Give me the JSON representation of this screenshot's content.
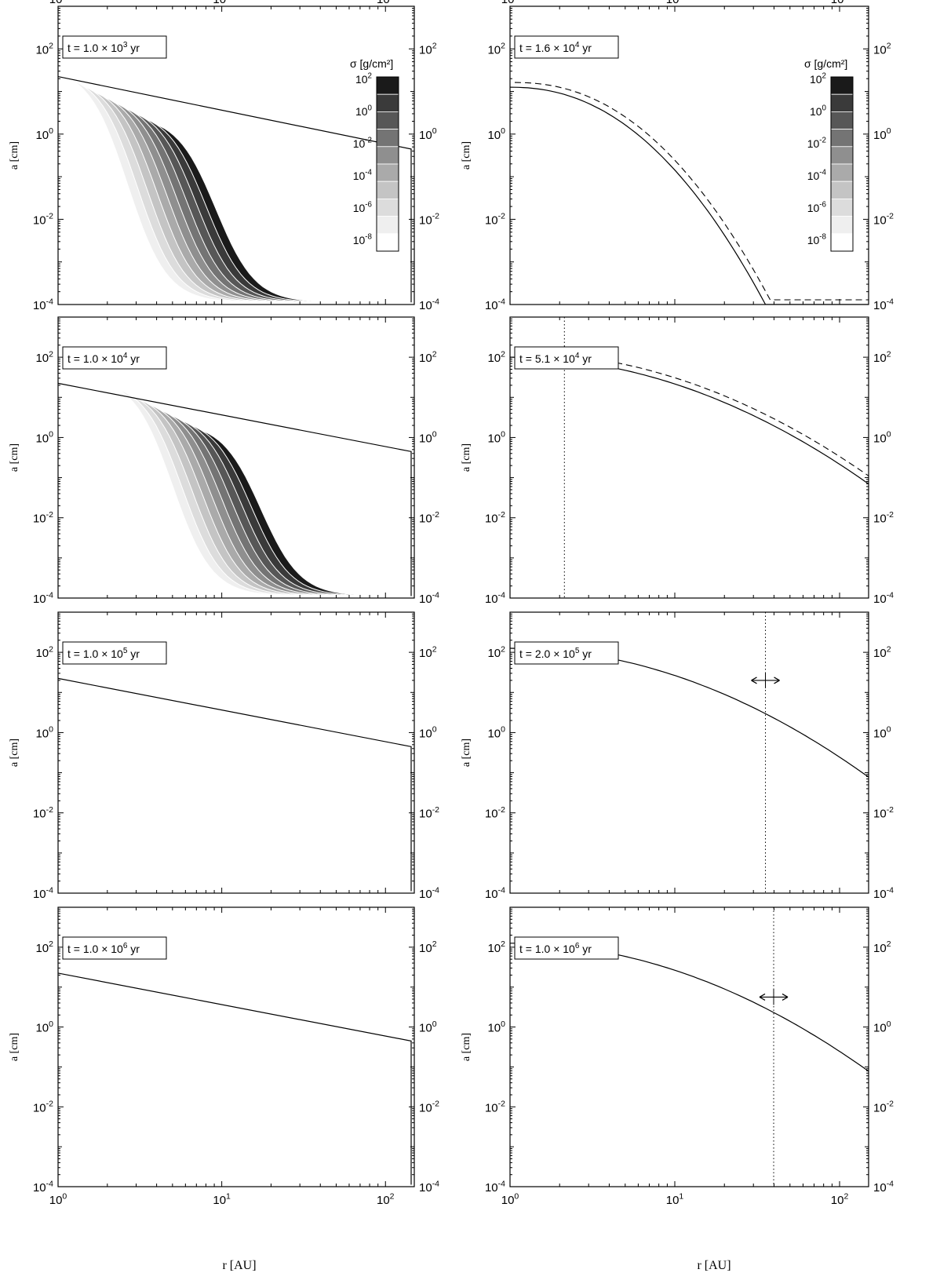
{
  "chart_data": {
    "type": "contour",
    "layout": "4 rows x 2 columns",
    "xlabel": "r [AU]",
    "ylabel": "a [cm]",
    "x_scale": "log",
    "y_scale": "log",
    "xlim": [
      1,
      150
    ],
    "ylim": [
      0.0001,
      1000
    ],
    "x_ticks": [
      1,
      10,
      100
    ],
    "x_tick_labels": [
      {
        "base": "10",
        "exp": "0"
      },
      {
        "base": "10",
        "exp": "1"
      },
      {
        "base": "10",
        "exp": "2"
      }
    ],
    "y_ticks": [
      0.0001,
      0.01,
      1,
      100
    ],
    "y_tick_labels": [
      {
        "base": "10",
        "exp": "-4"
      },
      {
        "base": "10",
        "exp": "-2"
      },
      {
        "base": "10",
        "exp": "0"
      },
      {
        "base": "10",
        "exp": "2"
      }
    ],
    "colorbar": {
      "label": "σ [g/cm²]",
      "levels": [
        {
          "base": "10",
          "exp": "2"
        },
        {
          "base": "10",
          "exp": "0"
        },
        {
          "base": "10",
          "exp": "-2"
        },
        {
          "base": "10",
          "exp": "-4"
        },
        {
          "base": "10",
          "exp": "-6"
        },
        {
          "base": "10",
          "exp": "-8"
        }
      ],
      "shades": [
        "#1a1a1a",
        "#3a3a3a",
        "#575757",
        "#747474",
        "#8f8f8f",
        "#aaaaaa",
        "#c4c4c4",
        "#dcdcdc",
        "#efefef",
        "#ffffff"
      ]
    },
    "panels": [
      {
        "time_label": {
          "prefix": "t = 1.0 × 10",
          "exp": "3",
          "suffix": " yr"
        },
        "has_colorbar": true
      },
      {
        "time_label": {
          "prefix": "t = 1.6 × 10",
          "exp": "4",
          "suffix": " yr"
        },
        "has_colorbar": true
      },
      {
        "time_label": {
          "prefix": "t = 1.0 × 10",
          "exp": "4",
          "suffix": " yr"
        },
        "has_colorbar": false
      },
      {
        "time_label": {
          "prefix": "t = 5.1 × 10",
          "exp": "4",
          "suffix": " yr"
        },
        "has_colorbar": false
      },
      {
        "time_label": {
          "prefix": "t = 1.0 × 10",
          "exp": "5",
          "suffix": " yr"
        },
        "has_colorbar": false
      },
      {
        "time_label": {
          "prefix": "t = 2.0 × 10",
          "exp": "5",
          "suffix": " yr"
        },
        "has_colorbar": false
      },
      {
        "time_label": {
          "prefix": "t = 1.0 × 10",
          "exp": "6",
          "suffix": " yr"
        },
        "has_colorbar": false
      },
      {
        "time_label": {
          "prefix": "t = 1.0 × 10",
          "exp": "6",
          "suffix": " yr"
        },
        "has_colorbar": false
      }
    ]
  }
}
